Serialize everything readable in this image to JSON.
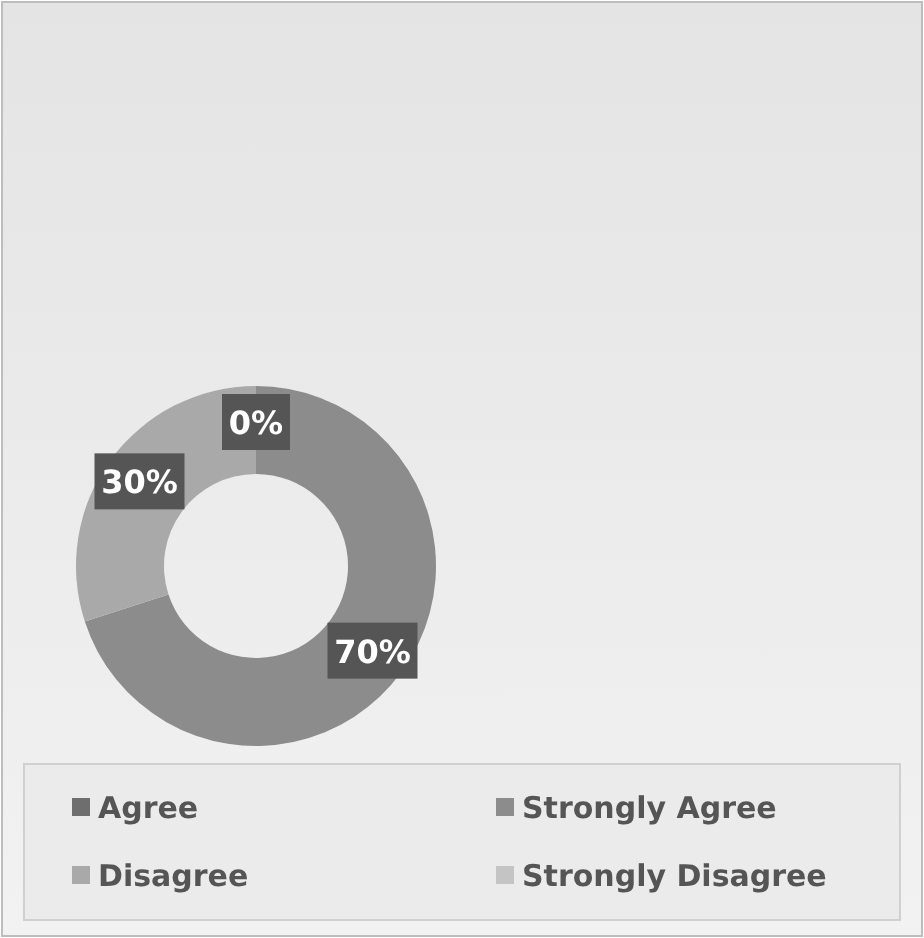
{
  "chart_data": {
    "type": "donut",
    "categories": [
      "Agree",
      "Strongly Agree",
      "Disagree",
      "Strongly Disagree"
    ],
    "values": [
      0,
      70,
      30,
      0
    ],
    "colors": [
      "#6e6e6e",
      "#8c8c8c",
      "#a9a9a9",
      "#c4c4c4"
    ],
    "value_labels": [
      "0%",
      "70%",
      "30%",
      null
    ],
    "legend": "bottom"
  }
}
